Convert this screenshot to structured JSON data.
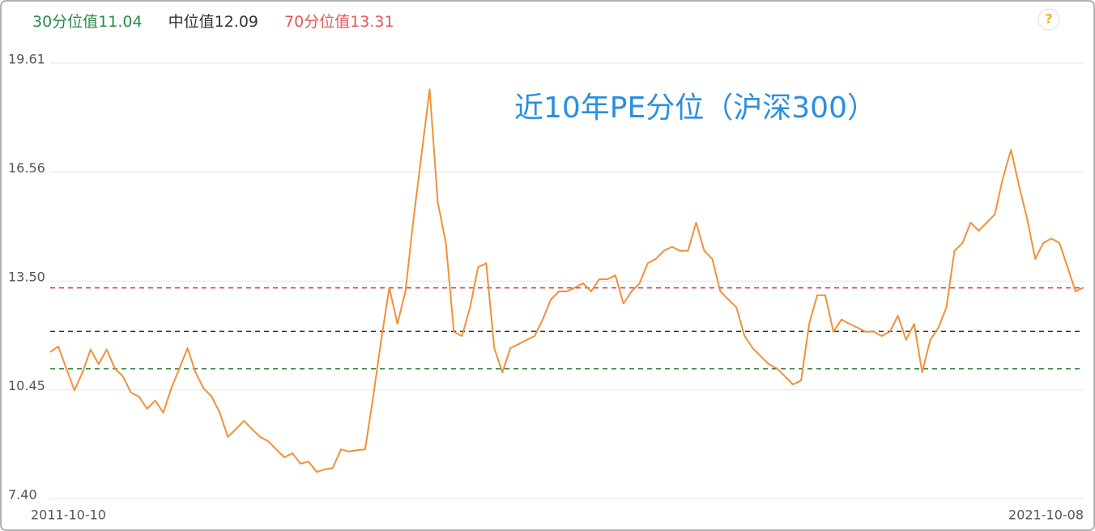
{
  "chart_data": {
    "type": "line",
    "title": "近10年PE分位（沪深300）",
    "help_icon": "?",
    "categories": [
      "2011-10-10",
      null,
      null,
      null,
      null,
      null,
      null,
      null,
      null,
      null,
      null,
      null,
      null,
      null,
      null,
      null,
      null,
      null,
      null,
      null,
      null,
      null,
      null,
      null,
      null,
      null,
      null,
      null,
      null,
      null,
      null,
      null,
      null,
      null,
      null,
      null,
      null,
      null,
      null,
      null,
      null,
      null,
      null,
      null,
      null,
      null,
      null,
      null,
      null,
      null,
      null,
      null,
      null,
      null,
      null,
      null,
      null,
      null,
      null,
      null,
      null,
      null,
      null,
      null,
      null,
      null,
      null,
      null,
      null,
      null,
      null,
      null,
      null,
      null,
      null,
      null,
      null,
      null,
      null,
      null,
      null,
      null,
      null,
      null,
      null,
      null,
      null,
      null,
      null,
      null,
      null,
      null,
      null,
      null,
      null,
      null,
      null,
      null,
      null,
      null,
      null,
      null,
      null,
      null,
      null,
      null,
      null,
      null,
      null,
      null,
      null,
      null,
      null,
      null,
      null,
      null,
      null,
      null,
      null,
      null,
      null,
      null,
      null,
      null,
      null,
      null,
      null,
      null,
      "2021-10-08"
    ],
    "values": [
      11.51,
      11.67,
      11.05,
      10.44,
      10.94,
      11.58,
      11.17,
      11.58,
      11.05,
      10.83,
      10.37,
      10.26,
      9.92,
      10.15,
      9.81,
      10.49,
      11.05,
      11.62,
      10.94,
      10.49,
      10.26,
      9.81,
      9.13,
      9.35,
      9.58,
      9.35,
      9.13,
      9.01,
      8.78,
      8.56,
      8.67,
      8.38,
      8.44,
      8.15,
      8.22,
      8.26,
      8.78,
      8.72,
      8.76,
      8.78,
      10.26,
      11.85,
      13.32,
      12.3,
      13.21,
      15.25,
      17.07,
      18.88,
      15.71,
      14.57,
      12.08,
      11.96,
      12.76,
      13.89,
      14.0,
      11.62,
      10.94,
      11.62,
      11.73,
      11.85,
      11.96,
      12.42,
      12.98,
      13.21,
      13.21,
      13.32,
      13.44,
      13.21,
      13.55,
      13.55,
      13.66,
      12.87,
      13.21,
      13.44,
      14.0,
      14.12,
      14.35,
      14.46,
      14.35,
      14.35,
      15.14,
      14.35,
      14.12,
      13.21,
      12.98,
      12.76,
      11.96,
      11.62,
      11.39,
      11.17,
      11.05,
      10.83,
      10.6,
      10.71,
      12.3,
      13.1,
      13.1,
      12.08,
      12.42,
      12.3,
      12.19,
      12.08,
      12.08,
      11.96,
      12.08,
      12.53,
      11.85,
      12.3,
      10.94,
      11.85,
      12.19,
      12.76,
      14.35,
      14.57,
      15.14,
      14.91,
      15.14,
      15.37,
      16.39,
      17.18,
      16.16,
      15.25,
      14.12,
      14.57,
      14.69,
      14.57,
      13.89,
      13.21,
      13.32
    ],
    "color": "#f0913a",
    "reference_lines": [
      {
        "name": "30分位值",
        "value": 11.04,
        "color": "#2a8a4a",
        "line_color": "#1f7a2c"
      },
      {
        "name": "中位值",
        "value": 12.09,
        "color": "#333333",
        "line_color": "#333333"
      },
      {
        "name": "70分位值",
        "value": 13.31,
        "color": "#e05a5a",
        "line_color": "#d23a3a"
      }
    ],
    "ylim": [
      7.4,
      19.61
    ],
    "yticks": [
      {
        "value": 7.4,
        "label": "7.40"
      },
      10.45,
      {
        "value": 13.5,
        "label": "13.50"
      },
      16.56,
      19.61
    ],
    "grid": true
  }
}
